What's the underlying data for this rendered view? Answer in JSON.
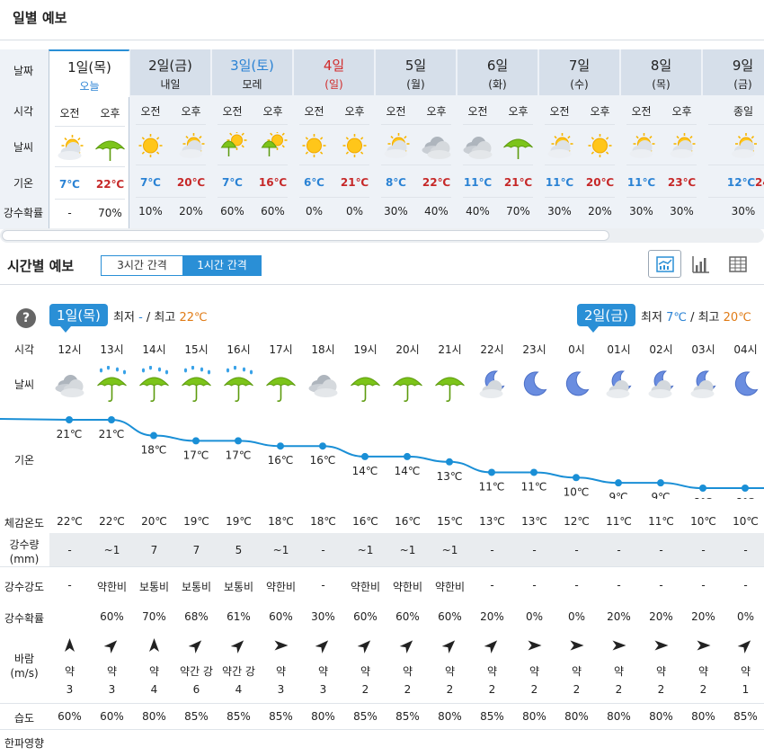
{
  "daily_title": "일별 예보",
  "daily": {
    "row_labels": [
      "날짜",
      "시각",
      "날씨",
      "기온",
      "강수확률"
    ],
    "days": [
      {
        "day": "1일(목)",
        "sub": "오늘",
        "ampm": [
          "오전",
          "오후"
        ],
        "icons": [
          "sun-cloud-icon",
          "umbrella-icon"
        ],
        "temps": [
          "7℃",
          "22℃"
        ],
        "pops": [
          "-",
          "70%"
        ],
        "today": true,
        "color": "",
        "subcolor": "blue"
      },
      {
        "day": "2일(금)",
        "sub": "내일",
        "ampm": [
          "오전",
          "오후"
        ],
        "icons": [
          "sun-icon",
          "sun-cloud-icon"
        ],
        "temps": [
          "7℃",
          "20℃"
        ],
        "pops": [
          "10%",
          "20%"
        ],
        "color": "",
        "subcolor": ""
      },
      {
        "day": "3일(토)",
        "sub": "모레",
        "ampm": [
          "오전",
          "오후"
        ],
        "icons": [
          "sun-umbrella-icon",
          "sun-umbrella-icon"
        ],
        "temps": [
          "7℃",
          "16℃"
        ],
        "pops": [
          "60%",
          "60%"
        ],
        "color": "blue",
        "subcolor": ""
      },
      {
        "day": "4일",
        "sub": "(일)",
        "ampm": [
          "오전",
          "오후"
        ],
        "icons": [
          "sun-icon",
          "sun-icon"
        ],
        "temps": [
          "6℃",
          "21℃"
        ],
        "pops": [
          "0%",
          "0%"
        ],
        "color": "red",
        "subcolor": "red"
      },
      {
        "day": "5일",
        "sub": "(월)",
        "ampm": [
          "오전",
          "오후"
        ],
        "icons": [
          "sun-cloud-icon",
          "cloud-icon"
        ],
        "temps": [
          "8℃",
          "22℃"
        ],
        "pops": [
          "30%",
          "40%"
        ],
        "color": "",
        "subcolor": ""
      },
      {
        "day": "6일",
        "sub": "(화)",
        "ampm": [
          "오전",
          "오후"
        ],
        "icons": [
          "cloud-icon",
          "umbrella-icon"
        ],
        "temps": [
          "11℃",
          "21℃"
        ],
        "pops": [
          "40%",
          "70%"
        ],
        "color": "",
        "subcolor": ""
      },
      {
        "day": "7일",
        "sub": "(수)",
        "ampm": [
          "오전",
          "오후"
        ],
        "icons": [
          "sun-cloud-icon",
          "sun-icon"
        ],
        "temps": [
          "11℃",
          "20℃"
        ],
        "pops": [
          "30%",
          "20%"
        ],
        "color": "",
        "subcolor": ""
      },
      {
        "day": "8일",
        "sub": "(목)",
        "ampm": [
          "오전",
          "오후"
        ],
        "icons": [
          "sun-cloud-icon",
          "sun-cloud-icon"
        ],
        "temps": [
          "11℃",
          "23℃"
        ],
        "pops": [
          "30%",
          "30%"
        ],
        "color": "",
        "subcolor": ""
      },
      {
        "day": "9일",
        "sub": "(금)",
        "ampm": [
          "종일"
        ],
        "icons": [
          "sun-cloud-icon"
        ],
        "temps": [
          "12℃",
          "24"
        ],
        "pops": [
          "30%"
        ],
        "color": "",
        "subcolor": ""
      }
    ]
  },
  "hourly_title": "시간별 예보",
  "interval_toggle": {
    "options": [
      "3시간 간격",
      "1시간 간격"
    ],
    "selected": "1시간 간격"
  },
  "view_buttons": [
    "graph-view-icon",
    "bar-chart-icon",
    "table-view-icon"
  ],
  "help_label": "?",
  "badges": [
    {
      "day": "1일(목)",
      "min_label": "최저",
      "min": "-",
      "max_label": "최고",
      "max": "22℃"
    },
    {
      "day": "2일(금)",
      "min_label": "최저",
      "min": "7℃",
      "max_label": "최고",
      "max": "20℃"
    }
  ],
  "hourly_labels": {
    "time": "시각",
    "weather": "날씨",
    "temp": "기온",
    "feels": "체감온도",
    "precip": "강수량",
    "precip_unit": "(mm)",
    "intensity": "강수강도",
    "pop": "강수확률",
    "wind": "바람",
    "wind_unit": "(m/s)",
    "humidity": "습도",
    "cold": "한파영향"
  },
  "hours": [
    {
      "time": "12시",
      "icon": "cloud-icon",
      "temp": 21,
      "temp_label": "21℃",
      "feels": "22℃",
      "precip": "-",
      "intensity": "-",
      "pop": "",
      "wind_dir": "N",
      "wind_word": "약",
      "wind_speed": "3",
      "humidity": "60%"
    },
    {
      "time": "13시",
      "icon": "umbrella-rain-icon",
      "temp": 21,
      "temp_label": "21℃",
      "feels": "22℃",
      "precip": "~1",
      "intensity": "약한비",
      "pop": "60%",
      "wind_dir": "NE",
      "wind_word": "약",
      "wind_speed": "3",
      "humidity": "60%"
    },
    {
      "time": "14시",
      "icon": "umbrella-rain-icon",
      "temp": 18,
      "temp_label": "18℃",
      "feels": "20℃",
      "precip": "7",
      "intensity": "보통비",
      "pop": "70%",
      "wind_dir": "N",
      "wind_word": "약",
      "wind_speed": "4",
      "humidity": "80%"
    },
    {
      "time": "15시",
      "icon": "umbrella-rain-icon",
      "temp": 17,
      "temp_label": "17℃",
      "feels": "19℃",
      "precip": "7",
      "intensity": "보통비",
      "pop": "68%",
      "wind_dir": "NE",
      "wind_word": "약간 강",
      "wind_speed": "6",
      "humidity": "85%"
    },
    {
      "time": "16시",
      "icon": "umbrella-rain-icon",
      "temp": 17,
      "temp_label": "17℃",
      "feels": "19℃",
      "precip": "5",
      "intensity": "보통비",
      "pop": "61%",
      "wind_dir": "NE",
      "wind_word": "약간 강",
      "wind_speed": "4",
      "humidity": "85%"
    },
    {
      "time": "17시",
      "icon": "umbrella-icon",
      "temp": 16,
      "temp_label": "16℃",
      "feels": "18℃",
      "precip": "~1",
      "intensity": "약한비",
      "pop": "60%",
      "wind_dir": "E",
      "wind_word": "약",
      "wind_speed": "3",
      "humidity": "85%"
    },
    {
      "time": "18시",
      "icon": "cloud-icon",
      "temp": 16,
      "temp_label": "16℃",
      "feels": "18℃",
      "precip": "-",
      "intensity": "-",
      "pop": "30%",
      "wind_dir": "NE",
      "wind_word": "약",
      "wind_speed": "3",
      "humidity": "80%"
    },
    {
      "time": "19시",
      "icon": "umbrella-icon",
      "temp": 14,
      "temp_label": "14℃",
      "feels": "16℃",
      "precip": "~1",
      "intensity": "약한비",
      "pop": "60%",
      "wind_dir": "NE",
      "wind_word": "약",
      "wind_speed": "2",
      "humidity": "85%"
    },
    {
      "time": "20시",
      "icon": "umbrella-icon",
      "temp": 14,
      "temp_label": "14℃",
      "feels": "16℃",
      "precip": "~1",
      "intensity": "약한비",
      "pop": "60%",
      "wind_dir": "NE",
      "wind_word": "약",
      "wind_speed": "2",
      "humidity": "85%"
    },
    {
      "time": "21시",
      "icon": "umbrella-icon",
      "temp": 13,
      "temp_label": "13℃",
      "feels": "15℃",
      "precip": "~1",
      "intensity": "약한비",
      "pop": "60%",
      "wind_dir": "NE",
      "wind_word": "약",
      "wind_speed": "2",
      "humidity": "80%"
    },
    {
      "time": "22시",
      "icon": "moon-cloud-icon",
      "temp": 11,
      "temp_label": "11℃",
      "feels": "13℃",
      "precip": "-",
      "intensity": "-",
      "pop": "20%",
      "wind_dir": "NE",
      "wind_word": "약",
      "wind_speed": "2",
      "humidity": "85%"
    },
    {
      "time": "23시",
      "icon": "moon-icon",
      "temp": 11,
      "temp_label": "11℃",
      "feels": "13℃",
      "precip": "-",
      "intensity": "-",
      "pop": "0%",
      "wind_dir": "E",
      "wind_word": "약",
      "wind_speed": "2",
      "humidity": "80%"
    },
    {
      "time": "0시",
      "icon": "moon-icon",
      "temp": 10,
      "temp_label": "10℃",
      "feels": "12℃",
      "precip": "-",
      "intensity": "-",
      "pop": "0%",
      "wind_dir": "E",
      "wind_word": "약",
      "wind_speed": "2",
      "humidity": "80%"
    },
    {
      "time": "01시",
      "icon": "moon-cloud-icon",
      "temp": 9,
      "temp_label": "9℃",
      "feels": "11℃",
      "precip": "-",
      "intensity": "-",
      "pop": "20%",
      "wind_dir": "E",
      "wind_word": "약",
      "wind_speed": "2",
      "humidity": "80%"
    },
    {
      "time": "02시",
      "icon": "moon-cloud-icon",
      "temp": 9,
      "temp_label": "9℃",
      "feels": "11℃",
      "precip": "-",
      "intensity": "-",
      "pop": "20%",
      "wind_dir": "E",
      "wind_word": "약",
      "wind_speed": "2",
      "humidity": "80%"
    },
    {
      "time": "03시",
      "icon": "moon-cloud-icon",
      "temp": 8,
      "temp_label": "8℃",
      "feels": "10℃",
      "precip": "-",
      "intensity": "-",
      "pop": "20%",
      "wind_dir": "E",
      "wind_word": "약",
      "wind_speed": "2",
      "humidity": "80%"
    },
    {
      "time": "04시",
      "icon": "moon-icon",
      "temp": 8,
      "temp_label": "8℃",
      "feels": "10℃",
      "precip": "-",
      "intensity": "-",
      "pop": "0%",
      "wind_dir": "NE",
      "wind_word": "약",
      "wind_speed": "1",
      "humidity": "85%"
    }
  ],
  "colors": {
    "accent": "#2a8fd6",
    "cold": "#2a82d4",
    "hot": "#c62828",
    "panel": "#eef2f7",
    "line": "#1a8fd6"
  }
}
